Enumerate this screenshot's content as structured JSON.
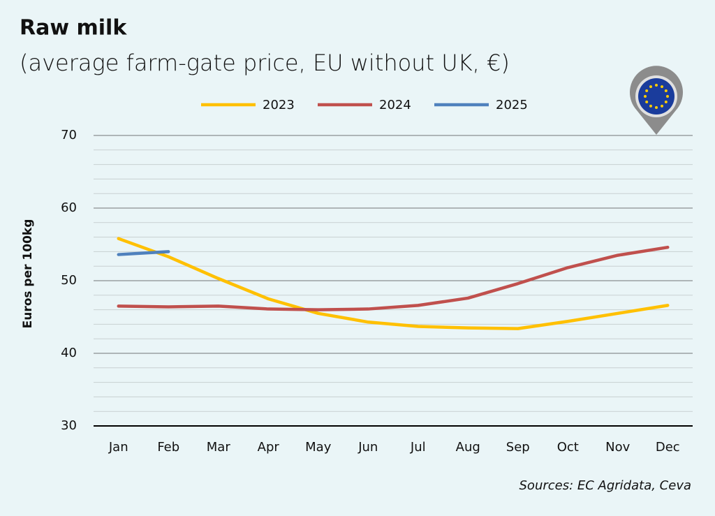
{
  "chart_data": {
    "type": "line",
    "title": "Raw milk",
    "subtitle": "(average farm-gate price, EU without UK, €)",
    "y_label": "Euros per 100kg",
    "source": "Sources: EC Agridata, Ceva",
    "categories": [
      "Jan",
      "Feb",
      "Mar",
      "Apr",
      "May",
      "Jun",
      "Jul",
      "Aug",
      "Sep",
      "Oct",
      "Nov",
      "Dec"
    ],
    "series": [
      {
        "name": "2023",
        "color": "#ffc000",
        "values": [
          55.8,
          53.3,
          50.3,
          47.5,
          45.5,
          44.3,
          43.7,
          43.5,
          43.4,
          44.4,
          45.5,
          46.6
        ]
      },
      {
        "name": "2024",
        "color": "#c0504d",
        "values": [
          46.5,
          46.4,
          46.5,
          46.1,
          46.0,
          46.1,
          46.6,
          47.6,
          49.6,
          51.8,
          53.5,
          54.6
        ]
      },
      {
        "name": "2025",
        "color": "#4f81bd",
        "values": [
          53.6,
          54.0,
          null,
          null,
          null,
          null,
          null,
          null,
          null,
          null,
          null,
          null
        ]
      }
    ],
    "ylim": [
      30,
      70
    ],
    "yticks": [
      30,
      40,
      50,
      60,
      70
    ],
    "minor_yticks": [
      32,
      34,
      36,
      38,
      42,
      44,
      46,
      48,
      52,
      54,
      56,
      58,
      62,
      64,
      66,
      68
    ],
    "grid": true,
    "legend": "top"
  }
}
